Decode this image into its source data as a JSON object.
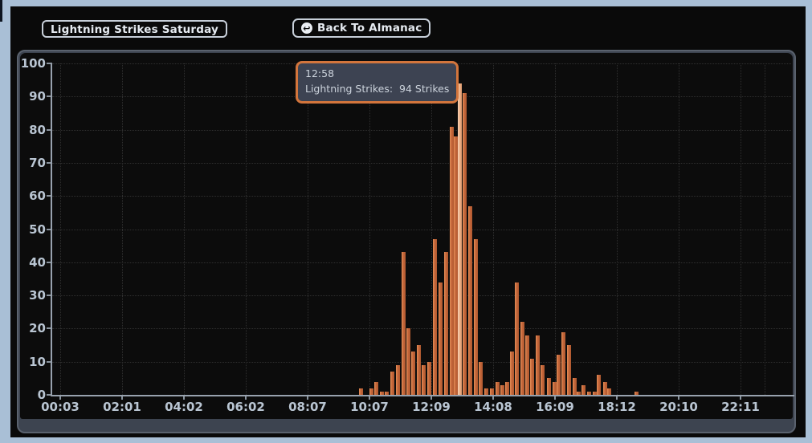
{
  "header": {
    "title": "Lightning Strikes Saturday",
    "back_button": "Back To Almanac",
    "back_icon": "back-arrow-icon"
  },
  "tooltip": {
    "time": "12:58",
    "text": "Lightning Strikes:  94 Strikes"
  },
  "chart_data": {
    "type": "bar",
    "title": "Lightning Strikes Saturday",
    "xlabel": "",
    "ylabel": "",
    "ylim": [
      0,
      100
    ],
    "y_ticks": [
      0,
      10,
      20,
      30,
      40,
      50,
      60,
      70,
      80,
      90,
      100
    ],
    "x_tick_labels": [
      "00:03",
      "02:01",
      "04:02",
      "06:02",
      "08:07",
      "10:07",
      "12:09",
      "14:08",
      "16:09",
      "18:12",
      "20:10",
      "22:11"
    ],
    "grid": "dotted, horizontal and vertical",
    "legend": "none",
    "bar_color": "#c4663a",
    "highlighted_bar_color": "#ecae83",
    "highlighted_point": {
      "t": "12:58",
      "v": 94
    },
    "points": [
      {
        "t": "09:46",
        "v": 2
      },
      {
        "t": "10:06",
        "v": 2
      },
      {
        "t": "10:16",
        "v": 4
      },
      {
        "t": "10:27",
        "v": 1
      },
      {
        "t": "10:36",
        "v": 1
      },
      {
        "t": "10:47",
        "v": 7
      },
      {
        "t": "10:58",
        "v": 9
      },
      {
        "t": "11:09",
        "v": 43
      },
      {
        "t": "11:18",
        "v": 20
      },
      {
        "t": "11:28",
        "v": 13
      },
      {
        "t": "11:39",
        "v": 15
      },
      {
        "t": "11:48",
        "v": 9
      },
      {
        "t": "11:59",
        "v": 10
      },
      {
        "t": "12:10",
        "v": 47
      },
      {
        "t": "12:21",
        "v": 34
      },
      {
        "t": "12:32",
        "v": 43
      },
      {
        "t": "12:43",
        "v": 81
      },
      {
        "t": "12:50",
        "v": 78
      },
      {
        "t": "12:58",
        "v": 94,
        "highlighted": true
      },
      {
        "t": "13:07",
        "v": 91
      },
      {
        "t": "13:18",
        "v": 57
      },
      {
        "t": "13:29",
        "v": 47
      },
      {
        "t": "13:39",
        "v": 10
      },
      {
        "t": "13:49",
        "v": 2
      },
      {
        "t": "14:00",
        "v": 2
      },
      {
        "t": "14:11",
        "v": 4
      },
      {
        "t": "14:21",
        "v": 3
      },
      {
        "t": "14:30",
        "v": 4
      },
      {
        "t": "14:39",
        "v": 13
      },
      {
        "t": "14:49",
        "v": 34
      },
      {
        "t": "15:00",
        "v": 22
      },
      {
        "t": "15:09",
        "v": 18
      },
      {
        "t": "15:18",
        "v": 11
      },
      {
        "t": "15:29",
        "v": 18
      },
      {
        "t": "15:39",
        "v": 9
      },
      {
        "t": "15:50",
        "v": 5
      },
      {
        "t": "16:01",
        "v": 4
      },
      {
        "t": "16:10",
        "v": 12
      },
      {
        "t": "16:19",
        "v": 19
      },
      {
        "t": "16:30",
        "v": 15
      },
      {
        "t": "16:40",
        "v": 5
      },
      {
        "t": "16:49",
        "v": 1
      },
      {
        "t": "16:58",
        "v": 3
      },
      {
        "t": "17:08",
        "v": 1
      },
      {
        "t": "17:19",
        "v": 1
      },
      {
        "t": "17:28",
        "v": 6
      },
      {
        "t": "17:39",
        "v": 4
      },
      {
        "t": "17:48",
        "v": 2
      },
      {
        "t": "18:40",
        "v": 1
      }
    ]
  },
  "colors": {
    "page_frame": "#a9bfd6",
    "page_background": "#0a0a0a",
    "panel_background": "#3d4450",
    "panel_border": "#5a626e",
    "chart_background": "#0c0c0c",
    "grid": "#2f2f2f",
    "axis": "#98a2ae",
    "axis_labels": "#b9c5d2",
    "bar": "#c4663a",
    "bar_highlight": "#ecae83",
    "tooltip_background": "#3d4352",
    "tooltip_border": "#d3753c",
    "tooltip_text": "#ccd3dc"
  }
}
